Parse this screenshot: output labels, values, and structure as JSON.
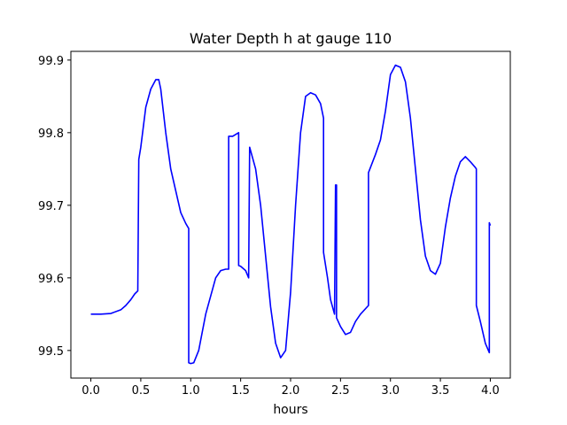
{
  "chart_data": {
    "type": "line",
    "title": "Water Depth h at gauge 110",
    "xlabel": "hours",
    "ylabel": "",
    "xlim": [
      -0.2,
      4.2
    ],
    "ylim": [
      99.462,
      99.912
    ],
    "x_ticks": [
      0.0,
      0.5,
      1.0,
      1.5,
      2.0,
      2.5,
      3.0,
      3.5,
      4.0
    ],
    "x_tick_labels": [
      "0.0",
      "0.5",
      "1.0",
      "1.5",
      "2.0",
      "2.5",
      "3.0",
      "3.5",
      "4.0"
    ],
    "y_ticks": [
      99.5,
      99.6,
      99.7,
      99.8,
      99.9
    ],
    "y_tick_labels": [
      "99.5",
      "99.6",
      "99.7",
      "99.8",
      "99.9"
    ],
    "grid": false,
    "series": [
      {
        "color": "#0000ff",
        "x": [
          0.0,
          0.1,
          0.2,
          0.3,
          0.35,
          0.4,
          0.44,
          0.47,
          0.48,
          0.48,
          0.5,
          0.55,
          0.6,
          0.65,
          0.68,
          0.7,
          0.75,
          0.8,
          0.85,
          0.9,
          0.95,
          0.98,
          0.98,
          1.0,
          1.03,
          1.08,
          1.15,
          1.25,
          1.3,
          1.35,
          1.38,
          1.38,
          1.42,
          1.48,
          1.48,
          1.5,
          1.55,
          1.58,
          1.59,
          1.6,
          1.65,
          1.7,
          1.75,
          1.8,
          1.85,
          1.9,
          1.95,
          2.0,
          2.05,
          2.1,
          2.15,
          2.2,
          2.25,
          2.3,
          2.33,
          2.33,
          2.37,
          2.4,
          2.44,
          2.45,
          2.46,
          2.46,
          2.5,
          2.55,
          2.6,
          2.65,
          2.7,
          2.78,
          2.78,
          2.85,
          2.9,
          2.95,
          3.0,
          3.05,
          3.1,
          3.15,
          3.2,
          3.25,
          3.3,
          3.35,
          3.4,
          3.45,
          3.5,
          3.55,
          3.6,
          3.65,
          3.7,
          3.75,
          3.8,
          3.85,
          3.86,
          3.86,
          3.9,
          3.95,
          3.99,
          3.99,
          4.0
        ],
        "y": [
          99.55,
          99.55,
          99.551,
          99.556,
          99.562,
          99.57,
          99.578,
          99.582,
          99.763,
          99.763,
          99.78,
          99.835,
          99.86,
          99.873,
          99.873,
          99.86,
          99.8,
          99.75,
          99.72,
          99.69,
          99.675,
          99.668,
          99.483,
          99.482,
          99.483,
          99.5,
          99.55,
          99.6,
          99.61,
          99.612,
          99.612,
          99.795,
          99.795,
          99.8,
          99.617,
          99.616,
          99.61,
          99.6,
          99.78,
          99.775,
          99.75,
          99.7,
          99.63,
          99.56,
          99.51,
          99.49,
          99.5,
          99.58,
          99.7,
          99.8,
          99.85,
          99.855,
          99.852,
          99.84,
          99.82,
          99.635,
          99.6,
          99.57,
          99.55,
          99.728,
          99.728,
          99.545,
          99.533,
          99.522,
          99.525,
          99.54,
          99.55,
          99.562,
          99.745,
          99.77,
          99.79,
          99.83,
          99.88,
          99.893,
          99.89,
          99.87,
          99.82,
          99.75,
          99.68,
          99.63,
          99.61,
          99.605,
          99.62,
          99.67,
          99.71,
          99.74,
          99.76,
          99.767,
          99.76,
          99.752,
          99.75,
          99.562,
          99.54,
          99.51,
          99.497,
          99.676,
          99.672
        ]
      }
    ]
  }
}
